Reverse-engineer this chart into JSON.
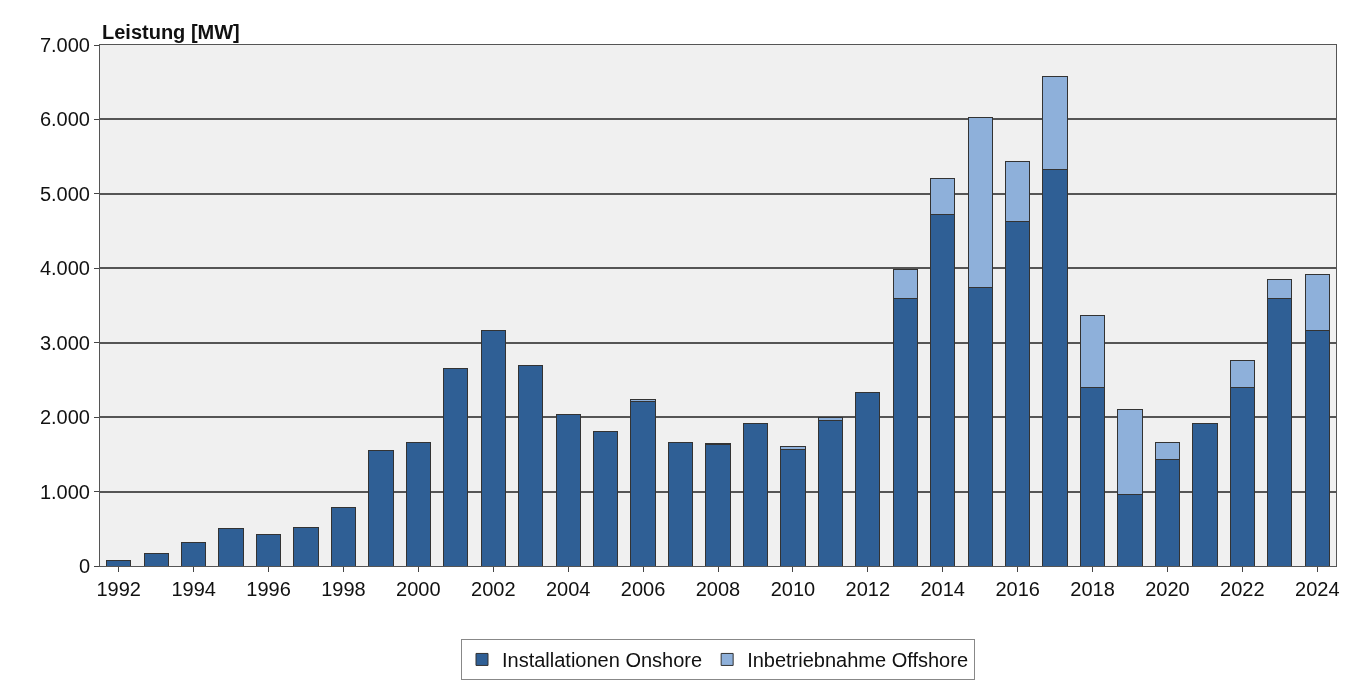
{
  "chart_data": {
    "type": "bar",
    "stacked": true,
    "ylabel": "Leistung [MW]",
    "categories": [
      "1992",
      null,
      "1994",
      null,
      "1996",
      null,
      "1998",
      null,
      "2000",
      null,
      "2002",
      null,
      "2004",
      null,
      "2006",
      null,
      "2008",
      null,
      "2010",
      null,
      "2012",
      null,
      "2014",
      null,
      "2016",
      null,
      "2018",
      null,
      "2020",
      null,
      "2022",
      null,
      "2024"
    ],
    "series": [
      {
        "name": "Installationen Onshore",
        "color": "#2f5f95",
        "values": [
          70,
          170,
          320,
          510,
          420,
          520,
          780,
          1550,
          1660,
          2650,
          3170,
          2690,
          2030,
          1810,
          2210,
          1660,
          1630,
          1910,
          1560,
          1960,
          2330,
          3600,
          4720,
          3740,
          4630,
          5330,
          2400,
          960,
          1430,
          1920,
          2400,
          3590,
          3160
        ]
      },
      {
        "name": "Inbetriebnahme Offshore",
        "color": "#8eb0da",
        "values": [
          null,
          null,
          null,
          null,
          null,
          null,
          null,
          null,
          null,
          null,
          null,
          null,
          10,
          null,
          30,
          null,
          10,
          null,
          50,
          40,
          null,
          390,
          480,
          2280,
          810,
          1250,
          960,
          1140,
          230,
          null,
          360,
          260,
          760
        ]
      }
    ],
    "ylim": [
      0,
      7000
    ],
    "yticks": [
      0,
      {
        "value": 1000,
        "label": "1.000"
      },
      {
        "value": 2000,
        "label": "2.000"
      },
      {
        "value": 3000,
        "label": "3.000"
      },
      {
        "value": 4000,
        "label": "4.000"
      },
      {
        "value": 5000,
        "label": "5.000"
      },
      {
        "value": 6000,
        "label": "6.000"
      },
      {
        "value": 7000,
        "label": "7.000"
      }
    ],
    "grid": "y",
    "legend": "bottom"
  }
}
